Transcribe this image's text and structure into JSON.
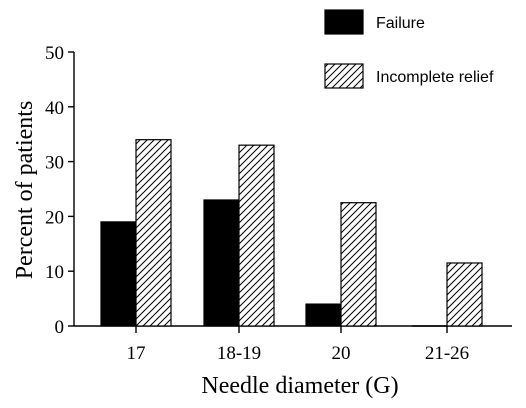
{
  "chart_data": {
    "type": "bar",
    "xlabel": "Needle diameter (G)",
    "ylabel": "Percent of patients",
    "categories": [
      "17",
      "18-19",
      "20",
      "21-26"
    ],
    "ylim": [
      0,
      50
    ],
    "yticks": [
      0,
      10,
      20,
      30,
      40,
      50
    ],
    "grid": false,
    "legend_position": "top-right",
    "series": [
      {
        "name": "Failure",
        "fill": "solid",
        "color": "#000000",
        "values": [
          19,
          23,
          4,
          0
        ]
      },
      {
        "name": "Incomplete relief",
        "fill": "hatch",
        "color": "#000000",
        "values": [
          34,
          33,
          22.5,
          11.5
        ]
      }
    ]
  }
}
